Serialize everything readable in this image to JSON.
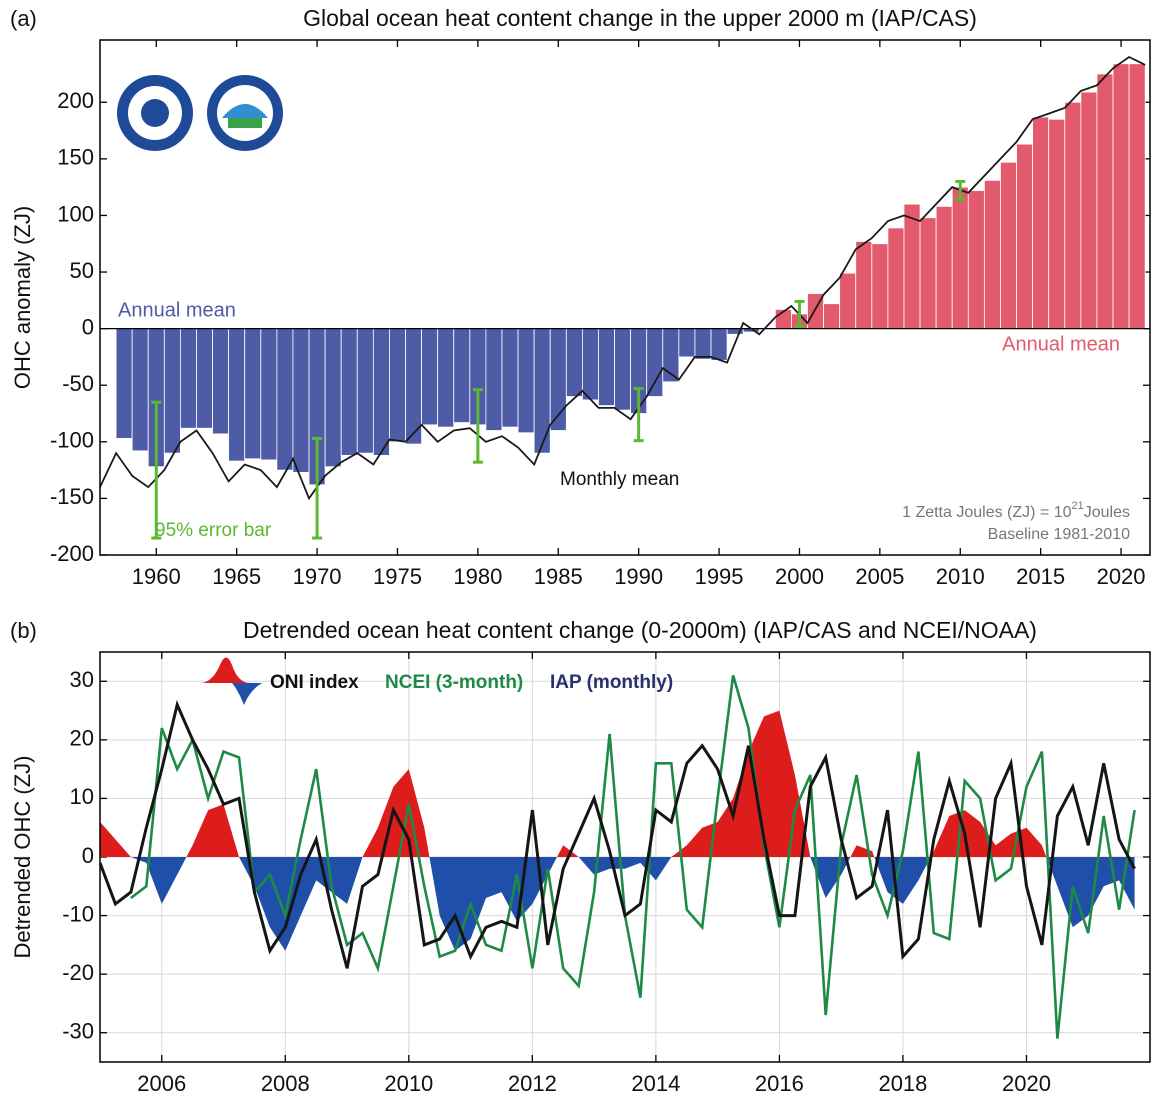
{
  "chart_data": [
    {
      "type": "bar",
      "label": "(a)",
      "title": "Global ocean heat content change in the upper 2000 m (IAP/CAS)",
      "ylabel": "OHC anomaly (ZJ)",
      "xlim": [
        1956.5,
        2021.8
      ],
      "xticks": [
        1960,
        1965,
        1970,
        1975,
        1980,
        1985,
        1990,
        1995,
        2000,
        2005,
        2010,
        2015,
        2020
      ],
      "ylim": [
        -200,
        255
      ],
      "yticks": [
        -200,
        -150,
        -100,
        -50,
        0,
        50,
        100,
        150,
        200
      ],
      "x": [
        1958,
        1959,
        1960,
        1961,
        1962,
        1963,
        1964,
        1965,
        1966,
        1967,
        1968,
        1969,
        1970,
        1971,
        1972,
        1973,
        1974,
        1975,
        1976,
        1977,
        1978,
        1979,
        1980,
        1981,
        1982,
        1983,
        1984,
        1985,
        1986,
        1987,
        1988,
        1989,
        1990,
        1991,
        1992,
        1993,
        1994,
        1995,
        1996,
        1997,
        1998,
        1999,
        2000,
        2001,
        2002,
        2003,
        2004,
        2005,
        2006,
        2007,
        2008,
        2009,
        2010,
        2011,
        2012,
        2013,
        2014,
        2015,
        2016,
        2017,
        2018,
        2019,
        2020,
        2021
      ],
      "values": [
        -97,
        -108,
        -122,
        -110,
        -88,
        -88,
        -93,
        -117,
        -115,
        -116,
        -125,
        -127,
        -138,
        -122,
        -112,
        -110,
        -112,
        -100,
        -102,
        -85,
        -87,
        -83,
        -85,
        -90,
        -87,
        -92,
        -110,
        -90,
        -60,
        -63,
        -68,
        -72,
        -75,
        -60,
        -47,
        -25,
        -27,
        -28,
        -5,
        -3,
        0,
        17,
        13,
        31,
        22,
        49,
        77,
        75,
        89,
        110,
        98,
        108,
        125,
        122,
        131,
        147,
        163,
        187,
        185,
        200,
        209,
        225,
        234,
        234
      ],
      "negative_color": "#4e5ba6",
      "positive_color": "#e35a6c",
      "negative_label": "Annual mean",
      "positive_label": "Annual mean",
      "line": {
        "name": "Monthly mean",
        "color": "#1a1a1a",
        "x": [
          1956.5,
          1957.5,
          1958.5,
          1959.5,
          1960.5,
          1961.5,
          1962.5,
          1963.5,
          1964.5,
          1965.5,
          1966.5,
          1967.5,
          1968.5,
          1969.5,
          1970.5,
          1971.5,
          1972.5,
          1973.5,
          1974.5,
          1975.5,
          1976.5,
          1977.5,
          1978.5,
          1979.5,
          1980.5,
          1981.5,
          1982.5,
          1983.5,
          1984.5,
          1985.5,
          1986.5,
          1987.5,
          1988.5,
          1989.5,
          1990.5,
          1991.5,
          1992.5,
          1993.5,
          1994.5,
          1995.5,
          1996.5,
          1997.5,
          1998.5,
          1999.5,
          2000.5,
          2001.5,
          2002.5,
          2003.5,
          2004.5,
          2005.5,
          2006.5,
          2007.5,
          2008.5,
          2009.5,
          2010.5,
          2011.5,
          2012.5,
          2013.5,
          2014.5,
          2015.5,
          2016.5,
          2017.5,
          2018.5,
          2019.5,
          2020.5,
          2021.5
        ],
        "values": [
          -140,
          -110,
          -130,
          -140,
          -125,
          -100,
          -90,
          -110,
          -135,
          -120,
          -125,
          -140,
          -115,
          -150,
          -130,
          -118,
          -110,
          -120,
          -98,
          -100,
          -85,
          -100,
          -90,
          -88,
          -100,
          -95,
          -105,
          -120,
          -85,
          -68,
          -55,
          -70,
          -70,
          -80,
          -60,
          -35,
          -45,
          -25,
          -25,
          -30,
          5,
          -5,
          10,
          20,
          5,
          30,
          45,
          70,
          80,
          95,
          100,
          95,
          110,
          125,
          120,
          135,
          150,
          165,
          185,
          190,
          195,
          210,
          215,
          230,
          240,
          233
        ]
      },
      "error_bars": {
        "name": "95% error bar",
        "color": "#5cb832",
        "x": [
          1960,
          1970,
          1980,
          1990,
          2000,
          2010
        ],
        "values": [
          -125,
          -141,
          -86,
          -76,
          13,
          122
        ],
        "errors": [
          60,
          44,
          32,
          23,
          11,
          8
        ]
      },
      "note": [
        "1 Zetta Joules (ZJ) = 10",
        "21",
        "Joules"
      ],
      "baseline": "Baseline 1981-2010"
    },
    {
      "type": "line",
      "label": "(b)",
      "title": "Detrended ocean heat content change (0-2000m) (IAP/CAS and NCEI/NOAA)",
      "ylabel": "Detrended OHC (ZJ)",
      "grid": true,
      "xlim": [
        2005,
        2022
      ],
      "xticks": [
        2006,
        2008,
        2010,
        2012,
        2014,
        2016,
        2018,
        2020
      ],
      "ylim": [
        -35,
        35
      ],
      "yticks": [
        -30,
        -20,
        -10,
        0,
        10,
        20,
        30
      ],
      "series": [
        {
          "name": "ONI index",
          "kind": "area",
          "color": "#dd1c1c",
          "negative_color": "#1f4fa8",
          "x": [
            2005,
            2005.25,
            2005.5,
            2005.75,
            2006,
            2006.25,
            2006.5,
            2006.75,
            2007,
            2007.25,
            2007.5,
            2007.75,
            2008,
            2008.25,
            2008.5,
            2008.75,
            2009,
            2009.25,
            2009.5,
            2009.75,
            2010,
            2010.25,
            2010.5,
            2010.75,
            2011,
            2011.25,
            2011.5,
            2011.75,
            2012,
            2012.25,
            2012.5,
            2012.75,
            2013,
            2013.25,
            2013.5,
            2013.75,
            2014,
            2014.25,
            2014.5,
            2014.75,
            2015,
            2015.25,
            2015.5,
            2015.75,
            2016,
            2016.25,
            2016.5,
            2016.75,
            2017,
            2017.25,
            2017.5,
            2017.75,
            2018,
            2018.25,
            2018.5,
            2018.75,
            2019,
            2019.25,
            2019.5,
            2019.75,
            2020,
            2020.25,
            2020.5,
            2020.75,
            2021,
            2021.25,
            2021.5,
            2021.75
          ],
          "values": [
            6,
            3,
            0,
            -1,
            -8,
            -3,
            2,
            8,
            9,
            0,
            -5,
            -12,
            -16,
            -10,
            -4,
            -6,
            -8,
            0,
            5,
            12,
            15,
            5,
            -10,
            -16,
            -14,
            -7,
            -6,
            -11,
            -8,
            -3,
            2,
            0,
            -3,
            -2,
            -2,
            -1,
            -4,
            0,
            2,
            5,
            6,
            10,
            18,
            24,
            25,
            14,
            0,
            -7,
            -3,
            2,
            1,
            -6,
            -8,
            -4,
            1,
            7,
            8,
            6,
            2,
            4,
            5,
            2,
            -5,
            -12,
            -10,
            -5,
            -4,
            -9
          ]
        },
        {
          "name": "NCEI (3-month)",
          "kind": "line",
          "color": "#1e8a45",
          "x": [
            2005.5,
            2005.75,
            2006,
            2006.25,
            2006.5,
            2006.75,
            2007,
            2007.25,
            2007.5,
            2007.75,
            2008,
            2008.25,
            2008.5,
            2008.75,
            2009,
            2009.25,
            2009.5,
            2009.75,
            2010,
            2010.25,
            2010.5,
            2010.75,
            2011,
            2011.25,
            2011.5,
            2011.75,
            2012,
            2012.25,
            2012.5,
            2012.75,
            2013,
            2013.25,
            2013.5,
            2013.75,
            2014,
            2014.25,
            2014.5,
            2014.75,
            2015,
            2015.25,
            2015.5,
            2015.75,
            2016,
            2016.25,
            2016.5,
            2016.75,
            2017,
            2017.25,
            2017.5,
            2017.75,
            2018,
            2018.25,
            2018.5,
            2018.75,
            2019,
            2019.25,
            2019.5,
            2019.75,
            2020,
            2020.25,
            2020.5,
            2020.75,
            2021,
            2021.25,
            2021.5,
            2021.75
          ],
          "values": [
            -7,
            -5,
            22,
            15,
            20,
            10,
            18,
            17,
            -6,
            -3,
            -10,
            3,
            15,
            -5,
            -15,
            -13,
            -19,
            -5,
            9,
            -5,
            -17,
            -16,
            -8,
            -15,
            -16,
            -3,
            -19,
            -2,
            -19,
            -22,
            -6,
            21,
            -10,
            -24,
            16,
            16,
            -9,
            -12,
            10,
            31,
            22,
            2,
            -12,
            8,
            14,
            -27,
            2,
            14,
            -3,
            -10,
            1,
            18,
            -13,
            -14,
            13,
            10,
            -4,
            -2,
            12,
            18,
            -31,
            -5,
            -13,
            7,
            -9,
            8
          ]
        },
        {
          "name": "IAP (monthly)",
          "kind": "line",
          "color": "#151515",
          "label_color": "#27306e",
          "x": [
            2005,
            2005.25,
            2005.5,
            2005.75,
            2006,
            2006.25,
            2006.5,
            2006.75,
            2007,
            2007.25,
            2007.5,
            2007.75,
            2008,
            2008.25,
            2008.5,
            2008.75,
            2009,
            2009.25,
            2009.5,
            2009.75,
            2010,
            2010.25,
            2010.5,
            2010.75,
            2011,
            2011.25,
            2011.5,
            2011.75,
            2012,
            2012.25,
            2012.5,
            2012.75,
            2013,
            2013.25,
            2013.5,
            2013.75,
            2014,
            2014.25,
            2014.5,
            2014.75,
            2015,
            2015.25,
            2015.5,
            2015.75,
            2016,
            2016.25,
            2016.5,
            2016.75,
            2017,
            2017.25,
            2017.5,
            2017.75,
            2018,
            2018.25,
            2018.5,
            2018.75,
            2019,
            2019.25,
            2019.5,
            2019.75,
            2020,
            2020.25,
            2020.5,
            2020.75,
            2021,
            2021.25,
            2021.5,
            2021.75
          ],
          "values": [
            -1,
            -8,
            -6,
            5,
            15,
            26,
            20,
            15,
            9,
            10,
            -6,
            -16,
            -12,
            -3,
            3,
            -9,
            -19,
            -5,
            -3,
            8,
            3,
            -15,
            -14,
            -10,
            -17,
            -12,
            -11,
            -12,
            8,
            -15,
            -2,
            4,
            10,
            1,
            -10,
            -8,
            8,
            6,
            16,
            19,
            15,
            7,
            19,
            3,
            -10,
            -10,
            12,
            17,
            3,
            -7,
            -5,
            8,
            -17,
            -14,
            3,
            13,
            4,
            -12,
            10,
            16,
            -5,
            -15,
            7,
            12,
            2,
            16,
            3,
            -2
          ]
        }
      ]
    }
  ]
}
